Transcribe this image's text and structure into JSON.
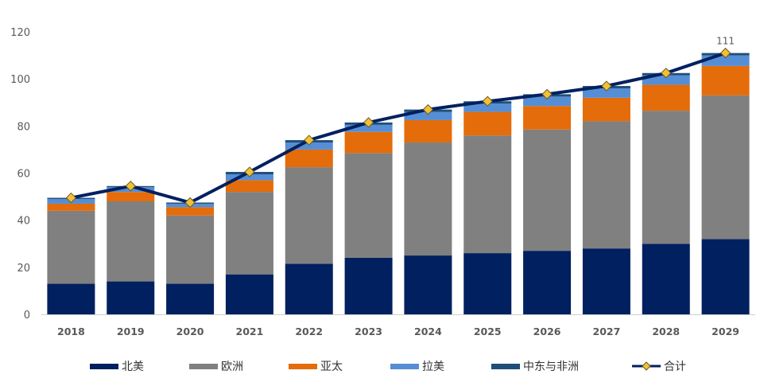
{
  "chart_data": {
    "type": "bar",
    "stacked": true,
    "categories": [
      "2018",
      "2019",
      "2020",
      "2021",
      "2022",
      "2023",
      "2024",
      "2025",
      "2026",
      "2027",
      "2028",
      "2029"
    ],
    "series": [
      {
        "name": "北美",
        "color": "#002060",
        "values": [
          13,
          14,
          13,
          17,
          21.5,
          24,
          25,
          26,
          27,
          28,
          30,
          32
        ]
      },
      {
        "name": "欧洲",
        "color": "#808080",
        "values": [
          31,
          34,
          29,
          35,
          41,
          44.5,
          48,
          50,
          51.5,
          54,
          56.5,
          61
        ]
      },
      {
        "name": "亚太",
        "color": "#E46C0A",
        "values": [
          3,
          4,
          3.5,
          5,
          7.5,
          9,
          9.5,
          10,
          10,
          10,
          11,
          12.5
        ]
      },
      {
        "name": "拉美",
        "color": "#558ED5",
        "values": [
          2,
          2,
          1.5,
          2.5,
          3,
          3,
          3.5,
          3.5,
          4,
          4,
          4,
          4.5
        ]
      },
      {
        "name": "中东与非洲",
        "color": "#1F4E79",
        "values": [
          0.5,
          0.5,
          0.5,
          1,
          1,
          1,
          1,
          1,
          1,
          1,
          1,
          1
        ]
      }
    ],
    "line": {
      "name": "合计",
      "color": "#002060",
      "marker_color": "#F2C037",
      "values": [
        49.5,
        54.5,
        47.5,
        60.5,
        74,
        81.5,
        87,
        90.5,
        93.5,
        97,
        102.5,
        111
      ]
    },
    "annotations": [
      {
        "category": "2029",
        "text": "111"
      }
    ],
    "ylim": [
      0,
      120
    ],
    "yticks": [
      0,
      20,
      40,
      60,
      80,
      100,
      120
    ],
    "grid": false,
    "legend_position": "bottom",
    "title": "",
    "xlabel": "",
    "ylabel": ""
  }
}
